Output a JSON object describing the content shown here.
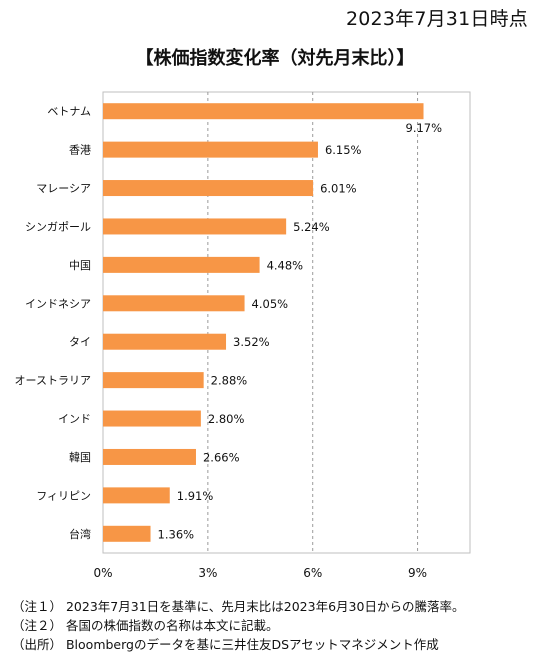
{
  "header": {
    "date": "2023年7月31日時点",
    "title": "【株価指数変化率（対先月末比）】"
  },
  "chart_data": {
    "type": "bar",
    "orientation": "horizontal",
    "title": "【株価指数変化率（対先月末比）】",
    "categories": [
      "ベトナム",
      "香港",
      "マレーシア",
      "シンガポール",
      "中国",
      "インドネシア",
      "タイ",
      "オーストラリア",
      "インド",
      "韓国",
      "フィリピン",
      "台湾"
    ],
    "values": [
      9.17,
      6.15,
      6.01,
      5.24,
      4.48,
      4.05,
      3.52,
      2.88,
      2.8,
      2.66,
      1.91,
      1.36
    ],
    "value_labels": [
      "9.17%",
      "6.15%",
      "6.01%",
      "5.24%",
      "4.48%",
      "4.05%",
      "3.52%",
      "2.88%",
      "2.80%",
      "2.66%",
      "1.91%",
      "1.36%"
    ],
    "xticks": [
      0,
      3,
      6,
      9
    ],
    "xtick_labels": [
      "0%",
      "3%",
      "6%",
      "9%"
    ],
    "xlim": [
      0,
      10.5
    ],
    "grid": "vertical dashed",
    "bar_color": "#F79646"
  },
  "notes": [
    "（注１） 2023年7月31日を基準に、先月末比は2023年6月30日からの騰落率。",
    "（注２） 各国の株価指数の名称は本文に記載。",
    "（出所） Bloombergのデータを基に三井住友DSアセットマネジメント作成"
  ]
}
